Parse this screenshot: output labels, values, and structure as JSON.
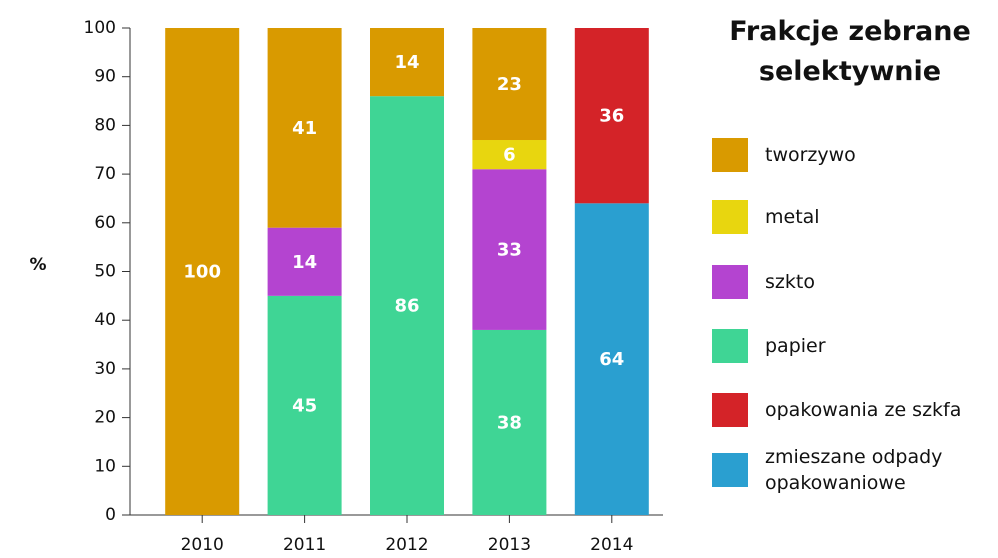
{
  "chart_data": {
    "type": "stacked_bar",
    "title": "Frakcje zebrane selektywnie",
    "ylabel": "%",
    "categories": [
      "2010",
      "2011",
      "2012",
      "2013",
      "2014"
    ],
    "series": [
      {
        "name": "tworzywo",
        "color": "#d99a00",
        "values": [
          100,
          41,
          14,
          23,
          null
        ]
      },
      {
        "name": "metal",
        "color": "#e8d60f",
        "values": [
          null,
          null,
          null,
          6,
          null
        ]
      },
      {
        "name": "szkto",
        "color": "#b444d0",
        "values": [
          null,
          14,
          null,
          33,
          null
        ]
      },
      {
        "name": "papier",
        "color": "#3fd595",
        "values": [
          null,
          45,
          86,
          38,
          null
        ]
      },
      {
        "name": "opakowania ze szkfa",
        "color": "#d42328",
        "values": [
          null,
          null,
          null,
          null,
          36
        ]
      },
      {
        "name": "zmieszane odpady opakowaniowe",
        "color": "#2a9fd0",
        "values": [
          null,
          null,
          null,
          null,
          64
        ]
      }
    ],
    "ylim": [
      0,
      100
    ],
    "yticks": [
      0,
      10,
      20,
      30,
      40,
      50,
      60,
      70,
      80,
      90,
      100
    ]
  }
}
